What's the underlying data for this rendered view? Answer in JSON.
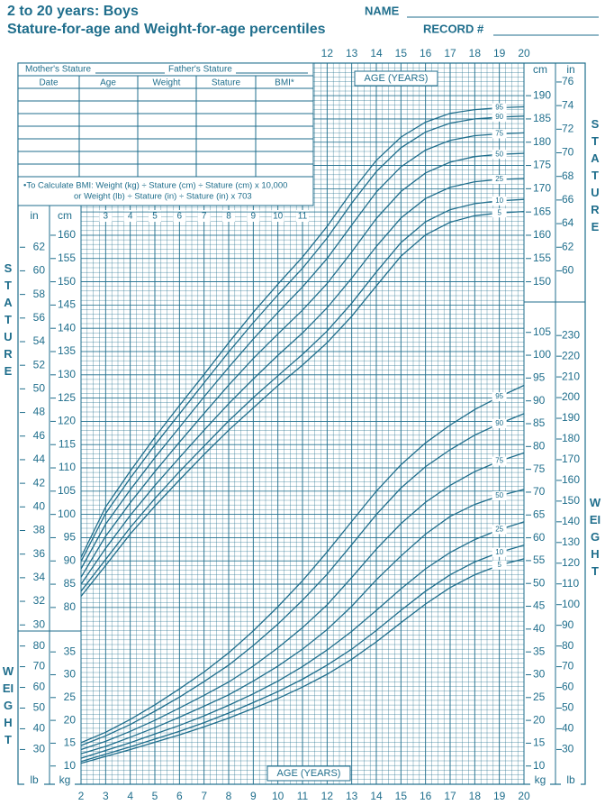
{
  "header": {
    "title": "2 to 20 years: Boys",
    "subtitle": "Stature-for-age and Weight-for-age percentiles",
    "name": "NAME",
    "record": "RECORD #"
  },
  "form": {
    "mother": "Mother's Stature",
    "father": "Father's Stature",
    "columns": [
      "Date",
      "Age",
      "Weight",
      "Stature",
      "BMI*"
    ],
    "bmi_line1": "•To Calculate BMI: Weight (kg) ÷ Stature (cm) ÷ Stature (cm) x 10,000",
    "bmi_line2": "or Weight (lb) ÷ Stature (in) ÷ Stature (in) x 703"
  },
  "side_labels": {
    "stature": "STATURE",
    "weight": "WEIGHT"
  },
  "unit_labels": {
    "in": "in",
    "cm": "cm",
    "lb": "lb",
    "kg": "kg"
  },
  "chart_data": {
    "type": "line",
    "xlabel": "AGE (YEARS)",
    "x": [
      2,
      3,
      4,
      5,
      6,
      7,
      8,
      9,
      10,
      11,
      12,
      13,
      14,
      15,
      16,
      17,
      18,
      19,
      20
    ],
    "xlim": [
      2,
      20
    ],
    "xticks": [
      2,
      3,
      4,
      5,
      6,
      7,
      8,
      9,
      10,
      11,
      12,
      13,
      14,
      15,
      16,
      17,
      18,
      19,
      20
    ],
    "ylim": [
      42,
      197
    ],
    "yticks": [
      80,
      85,
      90,
      95,
      100,
      105,
      110,
      115,
      120,
      125,
      130,
      135,
      140,
      145,
      150,
      155,
      160,
      165,
      170,
      175,
      180,
      185,
      190
    ],
    "ylim_in": [
      16.5,
      77.6
    ],
    "yticks_in": [
      30,
      32,
      34,
      36,
      38,
      40,
      42,
      44,
      46,
      48,
      50,
      52,
      54,
      56,
      58,
      60,
      62,
      64,
      66,
      68,
      70,
      72,
      74,
      76
    ],
    "y2lim": [
      6,
      164
    ],
    "y2ticks": [
      10,
      15,
      20,
      25,
      30,
      35,
      40,
      45,
      50,
      55,
      60,
      65,
      70,
      75,
      80,
      85,
      90,
      95,
      100,
      105
    ],
    "y2lim_lb": [
      13.2,
      361.6
    ],
    "y2ticks_lb": [
      30,
      40,
      50,
      60,
      70,
      80,
      90,
      100,
      110,
      120,
      130,
      140,
      150,
      160,
      170,
      180,
      190,
      200,
      210,
      220,
      230
    ],
    "grid": true,
    "series": [
      {
        "name": "95",
        "color": "#1f6e8c",
        "values": [
          90.8,
          101.6,
          109.3,
          116.6,
          123.4,
          130.1,
          136.9,
          143.4,
          149.5,
          155.3,
          161.9,
          169.4,
          176.1,
          181.1,
          184.3,
          186.2,
          187.0,
          187.4,
          187.6
        ]
      },
      {
        "name": "90",
        "color": "#1f6e8c",
        "values": [
          89.9,
          100.2,
          107.8,
          114.9,
          121.6,
          128.3,
          134.9,
          141.2,
          147.2,
          152.9,
          159.4,
          166.9,
          173.7,
          178.8,
          182.2,
          184.1,
          185.0,
          185.4,
          185.6
        ]
      },
      {
        "name": "75",
        "color": "#1f6e8c",
        "values": [
          88.3,
          97.9,
          105.3,
          112.2,
          118.7,
          125.3,
          131.6,
          137.7,
          143.4,
          148.9,
          155.0,
          162.2,
          169.3,
          174.7,
          178.3,
          180.4,
          181.4,
          181.8,
          182.0
        ]
      },
      {
        "name": "50",
        "color": "#1f6e8c",
        "values": [
          86.5,
          95.3,
          102.5,
          109.2,
          115.5,
          121.7,
          127.8,
          133.5,
          138.8,
          143.9,
          149.6,
          156.4,
          163.6,
          169.4,
          173.4,
          175.7,
          176.9,
          177.4,
          177.6
        ]
      },
      {
        "name": "25",
        "color": "#1f6e8c",
        "values": [
          85.0,
          92.7,
          99.8,
          106.2,
          112.2,
          118.1,
          123.8,
          129.1,
          134.2,
          139.0,
          144.4,
          150.8,
          157.6,
          163.7,
          167.9,
          170.3,
          171.5,
          172.0,
          172.2
        ]
      },
      {
        "name": "10",
        "color": "#1f6e8c",
        "values": [
          83.5,
          90.3,
          97.2,
          103.4,
          109.2,
          114.7,
          120.1,
          125.1,
          129.8,
          134.4,
          139.4,
          145.4,
          152.1,
          158.4,
          162.9,
          165.5,
          166.8,
          167.4,
          167.7
        ]
      },
      {
        "name": "5",
        "color": "#1f6e8c",
        "values": [
          82.4,
          89.0,
          95.8,
          101.8,
          107.4,
          112.9,
          118.1,
          122.9,
          127.7,
          132.1,
          136.9,
          142.6,
          149.1,
          155.5,
          160.1,
          162.8,
          164.2,
          164.8,
          165.1
        ]
      },
      {
        "name": "95",
        "color": "#1f6e8c",
        "axis": "y2",
        "values": [
          15.1,
          17.4,
          20.2,
          23.4,
          26.9,
          30.6,
          34.8,
          39.6,
          44.9,
          50.6,
          56.9,
          63.6,
          70.2,
          76.0,
          80.8,
          84.7,
          88.1,
          90.9,
          93.4
        ]
      },
      {
        "name": "90",
        "color": "#1f6e8c",
        "axis": "y2",
        "values": [
          14.5,
          16.6,
          19.1,
          22.0,
          25.1,
          28.5,
          32.1,
          36.4,
          41.1,
          46.3,
          52.0,
          58.5,
          65.1,
          70.9,
          75.6,
          79.3,
          82.5,
          85.0,
          87.2
        ]
      },
      {
        "name": "75",
        "color": "#1f6e8c",
        "axis": "y2",
        "values": [
          13.6,
          15.4,
          17.6,
          20.0,
          22.7,
          25.5,
          28.4,
          31.9,
          35.9,
          40.3,
          45.3,
          51.3,
          57.5,
          63.1,
          67.8,
          71.5,
          74.5,
          76.8,
          78.6
        ]
      },
      {
        "name": "50",
        "color": "#1f6e8c",
        "axis": "y2",
        "values": [
          12.7,
          14.3,
          16.3,
          18.4,
          20.7,
          23.1,
          25.6,
          28.6,
          31.9,
          35.6,
          39.9,
          45.0,
          50.8,
          56.0,
          60.8,
          64.7,
          67.3,
          69.2,
          70.6
        ]
      },
      {
        "name": "25",
        "color": "#1f6e8c",
        "axis": "y2",
        "values": [
          11.7,
          13.4,
          15.1,
          17.0,
          18.9,
          21.0,
          23.3,
          25.8,
          28.6,
          31.8,
          35.4,
          39.5,
          44.1,
          48.8,
          53.2,
          56.8,
          59.6,
          61.8,
          63.5
        ]
      },
      {
        "name": "10",
        "color": "#1f6e8c",
        "axis": "y2",
        "values": [
          11.0,
          12.6,
          14.2,
          15.9,
          17.6,
          19.5,
          21.6,
          23.9,
          26.3,
          29.0,
          32.1,
          35.6,
          39.7,
          44.1,
          48.3,
          51.9,
          54.7,
          56.8,
          58.4
        ]
      },
      {
        "name": "5",
        "color": "#1f6e8c",
        "axis": "y2",
        "values": [
          10.6,
          12.1,
          13.6,
          15.2,
          16.8,
          18.6,
          20.5,
          22.6,
          24.8,
          27.3,
          30.1,
          33.4,
          37.2,
          41.4,
          45.5,
          49.1,
          51.9,
          54.0,
          55.4
        ]
      }
    ]
  }
}
